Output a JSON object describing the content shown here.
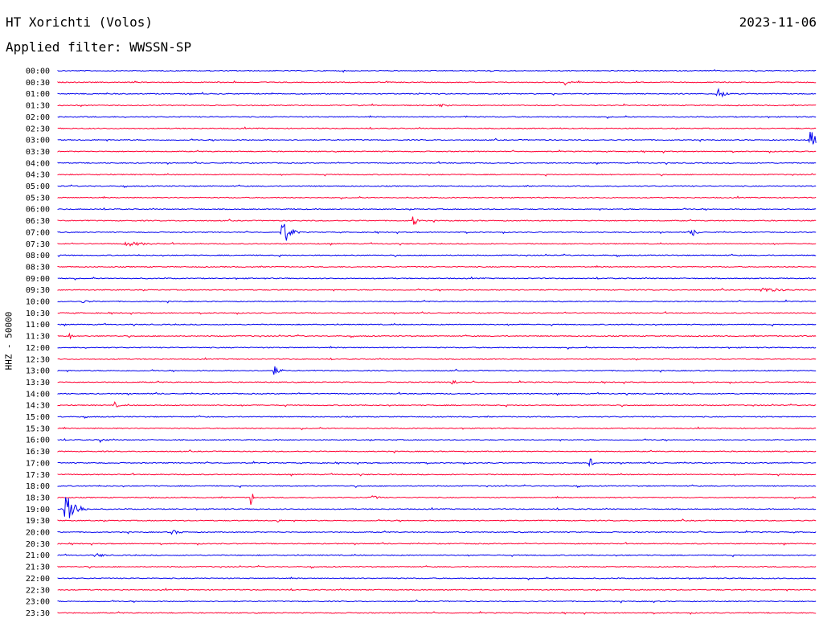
{
  "header": {
    "station": "HT Xorichti (Volos)",
    "date": "2023-11-06",
    "filter_text": "Applied filter: WWSSN-SP"
  },
  "chart_data": {
    "type": "line",
    "title": "HT Xorichti (Volos)",
    "ylabel": "HHZ - 50000",
    "xlabel": "",
    "grid": false,
    "series_colors": [
      "#0000ee",
      "#ff0033"
    ],
    "rows": [
      "00:00",
      "00:30",
      "01:00",
      "01:30",
      "02:00",
      "02:30",
      "03:00",
      "03:30",
      "04:00",
      "04:30",
      "05:00",
      "05:30",
      "06:00",
      "06:30",
      "07:00",
      "07:30",
      "08:00",
      "08:30",
      "09:00",
      "09:30",
      "10:00",
      "10:30",
      "11:00",
      "11:30",
      "12:00",
      "12:30",
      "13:00",
      "13:30",
      "14:00",
      "14:30",
      "15:00",
      "15:30",
      "16:00",
      "16:30",
      "17:00",
      "17:30",
      "18:00",
      "18:30",
      "19:00",
      "19:30",
      "20:00",
      "20:30",
      "21:00",
      "21:30",
      "22:00",
      "22:30",
      "23:00",
      "23:30"
    ],
    "events": [
      {
        "row": "00:30",
        "minute": 20.0,
        "amplitude": 5,
        "duration": 0.6
      },
      {
        "row": "00:30",
        "minute": 3.0,
        "amplitude": 1.5,
        "duration": 0.5
      },
      {
        "row": "01:00",
        "minute": 26.0,
        "amplitude": 8,
        "duration": 0.8
      },
      {
        "row": "01:30",
        "minute": 15.0,
        "amplitude": 2.5,
        "duration": 1.0
      },
      {
        "row": "02:00",
        "minute": 16.0,
        "amplitude": 2,
        "duration": 0.6
      },
      {
        "row": "03:00",
        "minute": 29.7,
        "amplitude": 18,
        "duration": 0.5
      },
      {
        "row": "06:30",
        "minute": 14.0,
        "amplitude": 8,
        "duration": 0.5
      },
      {
        "row": "07:00",
        "minute": 8.8,
        "amplitude": 20,
        "duration": 0.8
      },
      {
        "row": "07:00",
        "minute": 25.0,
        "amplitude": 6,
        "duration": 0.6
      },
      {
        "row": "07:30",
        "minute": 2.5,
        "amplitude": 3,
        "duration": 2.5
      },
      {
        "row": "09:30",
        "minute": 27.5,
        "amplitude": 3,
        "duration": 3.0
      },
      {
        "row": "10:00",
        "minute": 0.8,
        "amplitude": 2,
        "duration": 1.5
      },
      {
        "row": "11:30",
        "minute": 0.4,
        "amplitude": 4,
        "duration": 0.5
      },
      {
        "row": "13:00",
        "minute": 8.5,
        "amplitude": 7,
        "duration": 0.6
      },
      {
        "row": "13:30",
        "minute": 15.5,
        "amplitude": 5,
        "duration": 0.6
      },
      {
        "row": "14:30",
        "minute": 2.2,
        "amplitude": 4,
        "duration": 0.5
      },
      {
        "row": "16:00",
        "minute": 1.6,
        "amplitude": 3,
        "duration": 0.8
      },
      {
        "row": "17:00",
        "minute": 21.0,
        "amplitude": 9,
        "duration": 0.3
      },
      {
        "row": "18:30",
        "minute": 3.5,
        "amplitude": 3,
        "duration": 0.5
      },
      {
        "row": "18:30",
        "minute": 7.6,
        "amplitude": 12,
        "duration": 0.3
      },
      {
        "row": "18:30",
        "minute": 12.3,
        "amplitude": 3,
        "duration": 1.0
      },
      {
        "row": "19:00",
        "minute": 0.2,
        "amplitude": 28,
        "duration": 1.0
      },
      {
        "row": "19:30",
        "minute": 8.6,
        "amplitude": 3,
        "duration": 0.5
      },
      {
        "row": "20:00",
        "minute": 4.4,
        "amplitude": 3,
        "duration": 1.2
      },
      {
        "row": "21:00",
        "minute": 1.5,
        "amplitude": 3,
        "duration": 0.8
      },
      {
        "row": "23:00",
        "minute": 23.5,
        "amplitude": 2,
        "duration": 0.4
      }
    ]
  }
}
